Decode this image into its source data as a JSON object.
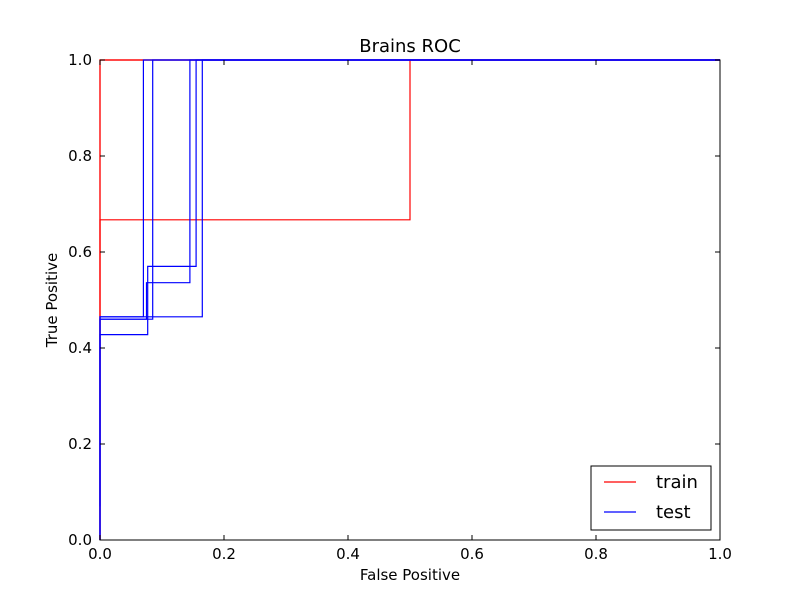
{
  "chart_data": {
    "type": "line",
    "title": "Brains ROC",
    "xlabel": "False Positive",
    "ylabel": "True Positive",
    "xlim": [
      0.0,
      1.0
    ],
    "ylim": [
      0.0,
      1.0
    ],
    "xticks": [
      "0.0",
      "0.2",
      "0.4",
      "0.6",
      "0.8",
      "1.0"
    ],
    "yticks": [
      "0.0",
      "0.2",
      "0.4",
      "0.6",
      "0.8",
      "1.0"
    ],
    "grid": false,
    "legend_position": "lower-right",
    "legend": [
      {
        "label": "train",
        "color": "#ff0000"
      },
      {
        "label": "test",
        "color": "#0000ff"
      }
    ],
    "series": [
      {
        "name": "train",
        "color": "#ff0000",
        "curves": [
          {
            "x": [
              0.0,
              0.0,
              0.0,
              0.5,
              0.5,
              1.0
            ],
            "y": [
              0.0,
              0.667,
              0.667,
              0.667,
              1.0,
              1.0
            ]
          },
          {
            "x": [
              0.0,
              0.0,
              1.0
            ],
            "y": [
              0.0,
              1.0,
              1.0
            ]
          },
          {
            "x": [
              0.0,
              0.0,
              1.0
            ],
            "y": [
              0.0,
              1.0,
              1.0
            ]
          }
        ]
      },
      {
        "name": "test",
        "color": "#0000ff",
        "curves": [
          {
            "x": [
              0.0,
              0.0,
              0.077,
              0.077,
              0.077,
              0.155,
              0.155,
              1.0
            ],
            "y": [
              0.07,
              0.428,
              0.428,
              0.57,
              0.57,
              0.57,
              1.0,
              1.0
            ]
          },
          {
            "x": [
              0.0,
              0.0,
              0.07,
              0.07,
              1.0
            ],
            "y": [
              0.0,
              0.465,
              0.465,
              1.0,
              1.0
            ]
          },
          {
            "x": [
              0.0,
              0.0,
              0.075,
              0.075,
              0.145,
              0.145,
              1.0
            ],
            "y": [
              0.0,
              0.46,
              0.46,
              0.536,
              0.536,
              1.0,
              1.0
            ]
          },
          {
            "x": [
              0.0,
              0.0,
              0.085,
              0.085,
              1.0
            ],
            "y": [
              0.0,
              0.46,
              0.46,
              1.0,
              1.0
            ]
          },
          {
            "x": [
              0.0,
              0.0,
              0.165,
              0.165,
              1.0
            ],
            "y": [
              0.0,
              0.465,
              0.465,
              1.0,
              1.0
            ]
          }
        ]
      }
    ]
  }
}
